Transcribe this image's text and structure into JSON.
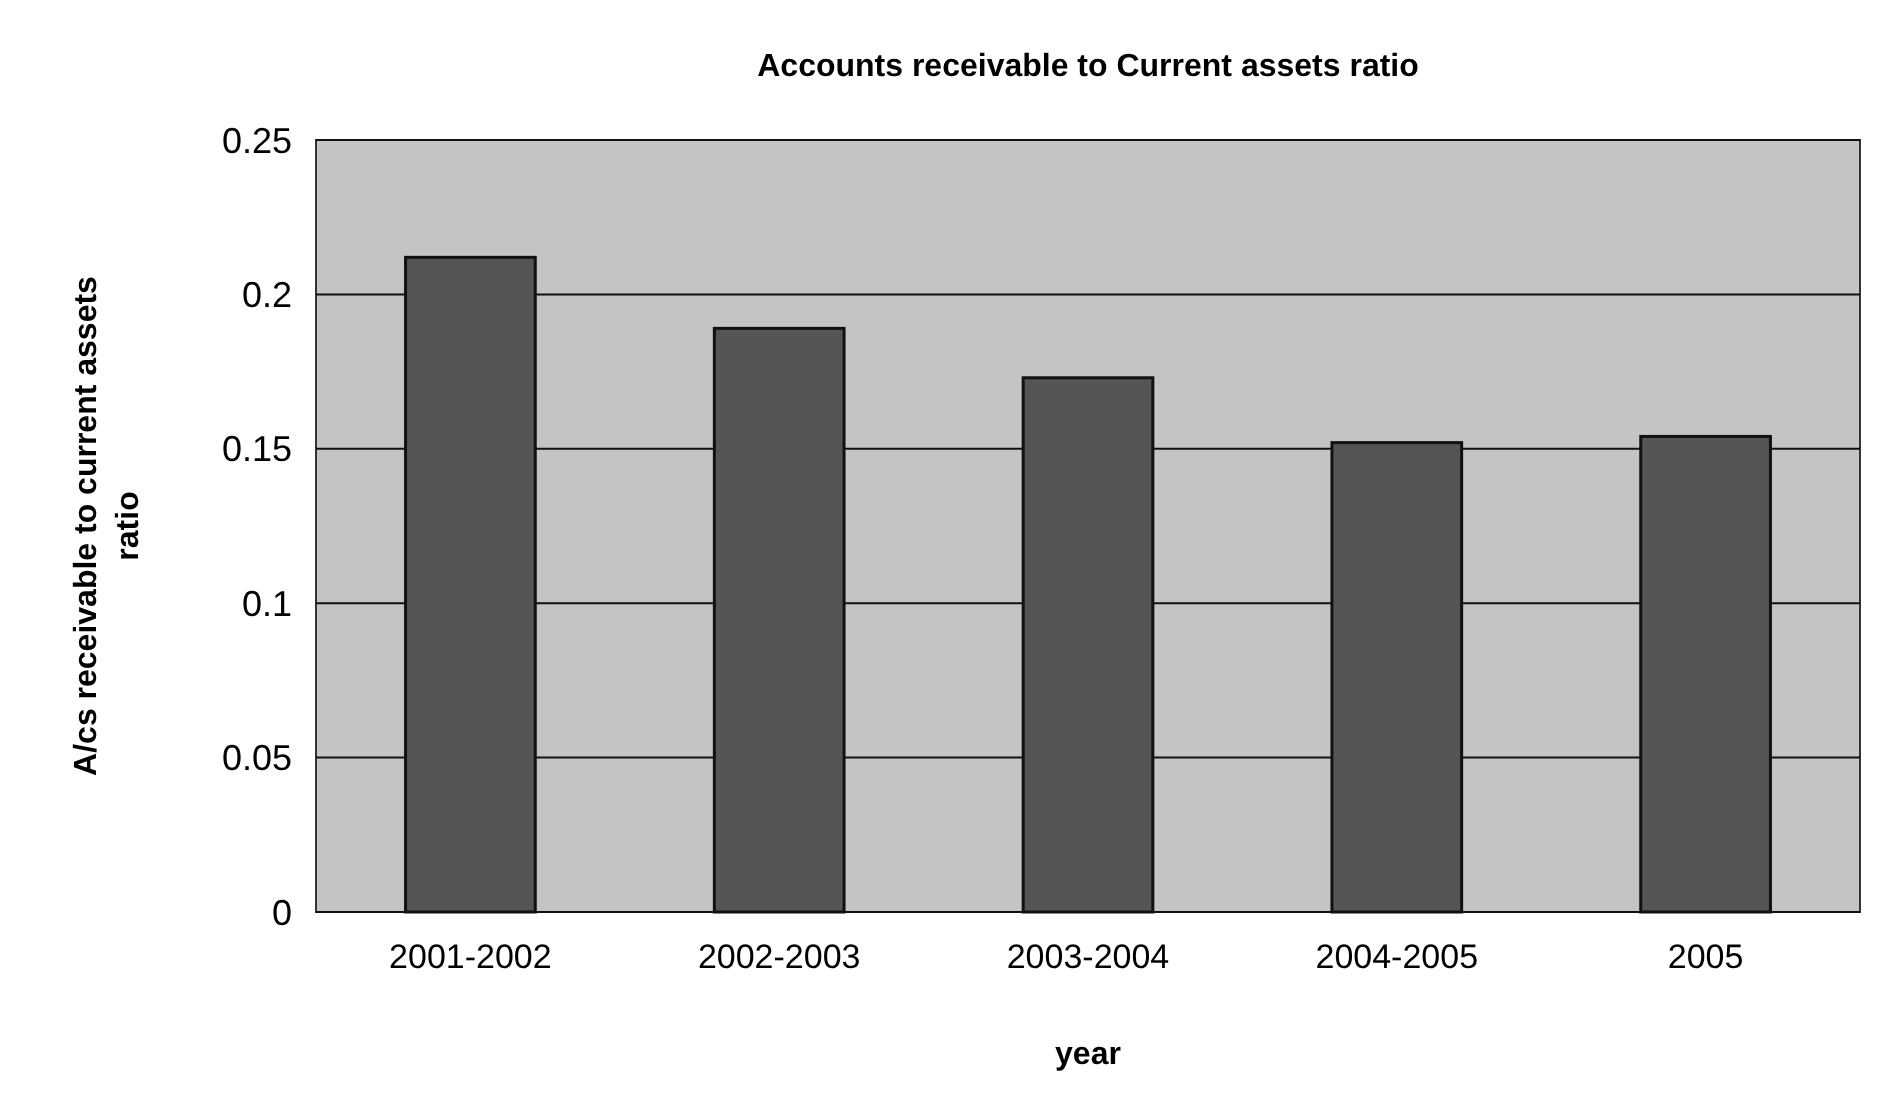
{
  "chart_data": {
    "type": "bar",
    "title": "Accounts receivable to Current assets ratio",
    "xlabel": "year",
    "ylabel": "A/cs receivable to current assets ratio",
    "categories": [
      "2001-2002",
      "2002-2003",
      "2003-2004",
      "2004-2005",
      "2005"
    ],
    "values": [
      0.212,
      0.189,
      0.173,
      0.152,
      0.154
    ],
    "color": "#555555",
    "ylim": [
      0,
      0.25
    ],
    "yticks": [
      0,
      0.05,
      0.1,
      0.15,
      0.2,
      0.25
    ],
    "grid": "y"
  }
}
